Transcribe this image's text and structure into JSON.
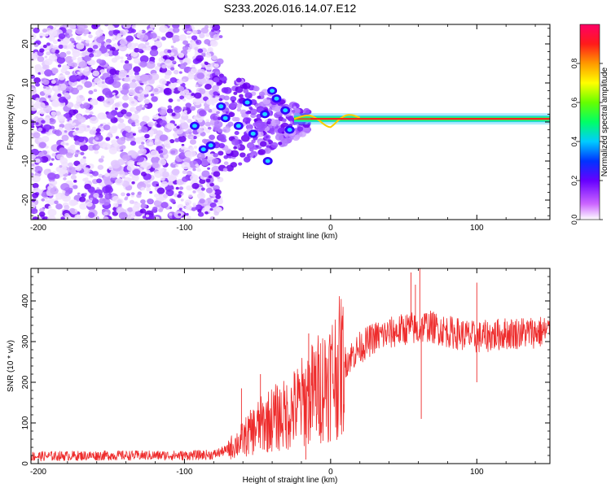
{
  "figure": {
    "title": "S233.2026.016.14.07.E12"
  },
  "chart_data": [
    {
      "type": "heatmap",
      "name": "spectrogram",
      "xlabel": "Height of straight line (km)",
      "ylabel": "Frequency (Hz)",
      "xlim": [
        -205,
        150
      ],
      "ylim": [
        -25,
        25
      ],
      "xticks": [
        -200,
        -100,
        0,
        100
      ],
      "xtick_labels": [
        "-200",
        "-100",
        "0",
        "100"
      ],
      "yticks": [
        20,
        10,
        0,
        -10,
        -20
      ],
      "ytick_labels": [
        "20",
        "10",
        "0",
        "-10",
        "-20"
      ],
      "ridge": {
        "frequency": 0.8,
        "x_start": -25,
        "x_end": 150
      },
      "hotspots": [
        {
          "x": -75,
          "f": 4
        },
        {
          "x": -72,
          "f": 1
        },
        {
          "x": -63,
          "f": -1
        },
        {
          "x": -57,
          "f": 5
        },
        {
          "x": -53,
          "f": -3
        },
        {
          "x": -45,
          "f": 2
        },
        {
          "x": -43,
          "f": -10
        },
        {
          "x": -40,
          "f": 8
        },
        {
          "x": -37,
          "f": 6
        },
        {
          "x": -31,
          "f": 3
        },
        {
          "x": -28,
          "f": -2
        },
        {
          "x": -82,
          "f": -6
        },
        {
          "x": -87,
          "f": -7
        },
        {
          "x": -93,
          "f": -1
        }
      ],
      "colorbar": {
        "label": "Normalized spectral amplitude",
        "range": [
          0,
          1
        ],
        "ticks": [
          0.0,
          0.2,
          0.4,
          0.6,
          0.8
        ],
        "tick_labels": [
          "0.0",
          "0.2",
          "0.4",
          "0.6",
          "0.8"
        ]
      }
    },
    {
      "type": "line",
      "name": "snr",
      "xlabel": "Height of straight line (km)",
      "ylabel": "SNR (10 * v/v)",
      "xlim": [
        -205,
        150
      ],
      "ylim": [
        0,
        480
      ],
      "xticks": [
        -200,
        -100,
        0,
        100
      ],
      "xtick_labels": [
        "-200",
        "-100",
        "0",
        "100"
      ],
      "yticks": [
        0,
        100,
        200,
        300,
        400
      ],
      "ytick_labels": [
        "0",
        "100",
        "200",
        "300",
        "400"
      ],
      "color": "#ee2b2b",
      "series": [
        {
          "name": "SNR envelope",
          "x": [
            -205,
            -150,
            -100,
            -80,
            -70,
            -60,
            -50,
            -40,
            -30,
            -20,
            -10,
            0,
            10,
            20,
            30,
            40,
            50,
            55,
            60,
            65,
            80,
            100,
            120,
            150
          ],
          "y": [
            18,
            20,
            20,
            22,
            35,
            60,
            90,
            110,
            120,
            150,
            180,
            215,
            250,
            285,
            310,
            320,
            330,
            335,
            325,
            340,
            325,
            310,
            320,
            325
          ]
        }
      ],
      "spikes": [
        {
          "x": -61,
          "y": 185
        },
        {
          "x": -48,
          "y": 220
        },
        {
          "x": -15,
          "y": 320
        },
        {
          "x": -17,
          "y": 10
        },
        {
          "x": 55,
          "y": 470
        },
        {
          "x": 58,
          "y": 440
        },
        {
          "x": 61,
          "y": 480
        },
        {
          "x": 62,
          "y": 110
        },
        {
          "x": 100,
          "y": 445
        },
        {
          "x": 100,
          "y": 200
        }
      ]
    }
  ]
}
